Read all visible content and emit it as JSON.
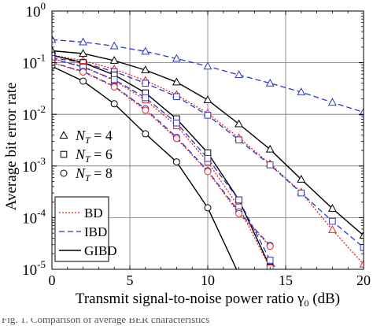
{
  "chart_data": {
    "type": "line",
    "xlabel_main": "Transmit signal-to-noise power ratio γ",
    "xlabel_sub": "0",
    "xlabel_unit": " (dB)",
    "ylabel": "Average bit error rate",
    "xlim": [
      0,
      20
    ],
    "ylim": [
      1e-05,
      1
    ],
    "yscale": "log",
    "grid": true,
    "x_ticks": [
      "0",
      "5",
      "10",
      "15",
      "20"
    ],
    "y_ticks": [
      {
        "base": "10",
        "exp": "0"
      },
      {
        "base": "10",
        "exp": "-1"
      },
      {
        "base": "10",
        "exp": "-2"
      },
      {
        "base": "10",
        "exp": "-3"
      },
      {
        "base": "10",
        "exp": "-4"
      },
      {
        "base": "10",
        "exp": "-5"
      }
    ],
    "legend_schemes_position": "bottom-left",
    "legend_schemes": [
      {
        "label": "BD",
        "color": "#e8211f",
        "dash": "dotted"
      },
      {
        "label": "IBD",
        "color": "#2a35c9",
        "dash": "dashed"
      },
      {
        "label": "GIBD",
        "color": "#000000",
        "dash": "solid"
      }
    ],
    "legend_markers_position": "left-middle",
    "legend_markers": [
      {
        "marker": "triangle",
        "var": "N",
        "sub": "T",
        "label": " = 4"
      },
      {
        "marker": "square",
        "var": "N",
        "sub": "T",
        "label": " = 6"
      },
      {
        "marker": "circle",
        "var": "N",
        "sub": "T",
        "label": " = 8"
      }
    ],
    "series": [
      {
        "scheme": "IBD",
        "marker": "triangle",
        "x": [
          0,
          2,
          4,
          6,
          8,
          10,
          12,
          14,
          16,
          18,
          20
        ],
        "y": [
          0.28,
          0.25,
          0.21,
          0.165,
          0.12,
          0.085,
          0.058,
          0.04,
          0.027,
          0.017,
          0.011
        ]
      },
      {
        "scheme": "GIBD",
        "marker": "triangle",
        "x": [
          0,
          2,
          4,
          6,
          8,
          10,
          12,
          14,
          16,
          18,
          20
        ],
        "y": [
          0.17,
          0.15,
          0.11,
          0.072,
          0.042,
          0.019,
          0.0065,
          0.0021,
          0.00055,
          0.00015,
          4.5e-05
        ]
      },
      {
        "scheme": "BD",
        "marker": "triangle",
        "x": [
          0,
          2,
          4,
          6,
          8,
          10,
          12,
          14,
          16,
          18,
          20
        ],
        "y": [
          0.14,
          0.11,
          0.075,
          0.045,
          0.024,
          0.0105,
          0.0035,
          0.0011,
          0.00031,
          5.8e-05,
          1.25e-05
        ]
      },
      {
        "scheme": "IBD",
        "marker": "square",
        "x": [
          0,
          2,
          4,
          6,
          8,
          10,
          12,
          14,
          16,
          18,
          20
        ],
        "y": [
          0.125,
          0.1,
          0.067,
          0.04,
          0.022,
          0.0096,
          0.0032,
          0.00105,
          0.0003,
          8.5e-05,
          2.65e-05
        ]
      },
      {
        "scheme": "GIBD",
        "marker": "square",
        "x": [
          0,
          2,
          4,
          6,
          8,
          10,
          12,
          14
        ],
        "y": [
          0.14,
          0.1,
          0.058,
          0.026,
          0.0082,
          0.0018,
          0.00022,
          1.1e-05
        ]
      },
      {
        "scheme": "BD",
        "marker": "square",
        "x": [
          0,
          2,
          4,
          6,
          8,
          10,
          12,
          14
        ],
        "y": [
          0.12,
          0.085,
          0.045,
          0.019,
          0.006,
          0.0012,
          0.00016,
          1.05e-05
        ]
      },
      {
        "scheme": "IBD",
        "marker": "square",
        "x": [
          0,
          2,
          4,
          6,
          8,
          10,
          12,
          14,
          15
        ],
        "y": [
          0.12,
          0.082,
          0.047,
          0.021,
          0.0068,
          0.0014,
          0.00022,
          1.5e-05,
          5.5e-06
        ]
      },
      {
        "scheme": "GIBD",
        "marker": "circle",
        "x": [
          0,
          2,
          4,
          6,
          8,
          10,
          12
        ],
        "y": [
          0.085,
          0.044,
          0.016,
          0.0042,
          0.0012,
          0.000155,
          8e-06
        ]
      },
      {
        "scheme": "IBD",
        "marker": "circle",
        "x": [
          0,
          2,
          4,
          6,
          8,
          10,
          12,
          14
        ],
        "y": [
          0.1,
          0.068,
          0.035,
          0.0128,
          0.0036,
          0.00081,
          0.00013,
          2.9e-05
        ]
      },
      {
        "scheme": "BD",
        "marker": "circle",
        "x": [
          0,
          2,
          4,
          6,
          8,
          10,
          12,
          14
        ],
        "y": [
          0.1,
          0.066,
          0.034,
          0.012,
          0.0034,
          0.00078,
          0.00012,
          2.8e-05
        ]
      }
    ]
  },
  "caption": "Fig. 1.   Comparison of average BER characteristics"
}
